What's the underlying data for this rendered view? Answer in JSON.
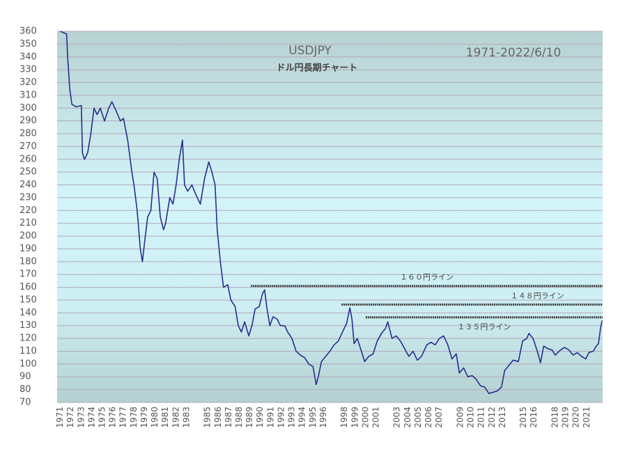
{
  "chart_data": {
    "type": "line",
    "title": "USDJPY",
    "subtitle": "ドル円長期チャート",
    "date_label": "1971-2022/6/10",
    "color": "#2b2b8c",
    "grid": true,
    "xlim": [
      1970.7,
      2022.5
    ],
    "ylim": [
      70,
      360
    ],
    "yticks": [
      70,
      80,
      90,
      100,
      110,
      120,
      130,
      140,
      150,
      160,
      170,
      180,
      190,
      200,
      210,
      220,
      230,
      240,
      250,
      260,
      270,
      280,
      290,
      300,
      310,
      320,
      330,
      340,
      350,
      360
    ],
    "xticks": [
      1971,
      1972,
      1973,
      1974,
      1975,
      1976,
      1977,
      1978,
      1979,
      1980,
      1981,
      1982,
      1983,
      1985,
      1986,
      1987,
      1988,
      1989,
      1990,
      1991,
      1992,
      1993,
      1994,
      1995,
      1996,
      1998,
      1999,
      2000,
      2001,
      2003,
      2004,
      2005,
      2006,
      2007,
      2009,
      2010,
      2011,
      2012,
      2013,
      2015,
      2016,
      2018,
      2019,
      2020,
      2021
    ],
    "x": [
      1971.0,
      1971.6,
      1971.7,
      1971.9,
      1972.1,
      1972.5,
      1973.0,
      1973.1,
      1973.3,
      1973.6,
      1973.9,
      1974.2,
      1974.5,
      1974.8,
      1975.2,
      1975.6,
      1975.9,
      1976.3,
      1976.7,
      1977.0,
      1977.4,
      1977.8,
      1978.0,
      1978.3,
      1978.6,
      1978.8,
      1979.0,
      1979.3,
      1979.6,
      1979.9,
      1980.2,
      1980.5,
      1980.8,
      1981.0,
      1981.4,
      1981.7,
      1982.0,
      1982.3,
      1982.6,
      1982.8,
      1983.1,
      1983.5,
      1983.9,
      1984.3,
      1984.7,
      1985.1,
      1985.4,
      1985.7,
      1985.9,
      1986.2,
      1986.5,
      1986.9,
      1987.2,
      1987.6,
      1987.9,
      1988.2,
      1988.5,
      1988.9,
      1989.2,
      1989.5,
      1989.9,
      1990.2,
      1990.4,
      1990.6,
      1990.9,
      1991.2,
      1991.6,
      1991.9,
      1992.3,
      1992.6,
      1993.0,
      1993.4,
      1993.8,
      1994.2,
      1994.6,
      1995.0,
      1995.3,
      1995.5,
      1995.8,
      1996.2,
      1996.6,
      1997.0,
      1997.4,
      1997.8,
      1998.2,
      1998.5,
      1998.7,
      1998.9,
      1999.2,
      1999.6,
      1999.9,
      2000.3,
      2000.7,
      2001.1,
      2001.5,
      2001.9,
      2002.1,
      2002.5,
      2002.9,
      2003.3,
      2003.7,
      2004.1,
      2004.5,
      2004.9,
      2005.3,
      2005.8,
      2006.2,
      2006.6,
      2007.0,
      2007.4,
      2007.8,
      2008.2,
      2008.6,
      2008.9,
      2009.3,
      2009.7,
      2010.1,
      2010.5,
      2010.9,
      2011.3,
      2011.7,
      2012.1,
      2012.5,
      2012.9,
      2013.2,
      2013.6,
      2014.0,
      2014.5,
      2014.9,
      2015.3,
      2015.5,
      2015.9,
      2016.3,
      2016.6,
      2016.9,
      2017.3,
      2017.7,
      2018.0,
      2018.5,
      2018.9,
      2019.3,
      2019.7,
      2020.1,
      2020.5,
      2020.9,
      2021.2,
      2021.6,
      2021.9,
      2022.1,
      2022.3,
      2022.45
    ],
    "values": [
      360,
      358,
      340,
      315,
      303,
      301,
      302,
      265,
      260,
      265,
      280,
      300,
      295,
      300,
      290,
      300,
      305,
      298,
      290,
      292,
      275,
      250,
      240,
      220,
      190,
      180,
      195,
      215,
      220,
      250,
      245,
      215,
      205,
      210,
      230,
      225,
      240,
      260,
      275,
      240,
      235,
      240,
      232,
      225,
      245,
      258,
      250,
      240,
      205,
      180,
      160,
      162,
      150,
      145,
      130,
      125,
      133,
      122,
      130,
      143,
      145,
      155,
      158,
      145,
      130,
      137,
      135,
      130,
      130,
      125,
      120,
      110,
      107,
      105,
      100,
      98,
      84,
      90,
      102,
      106,
      110,
      115,
      118,
      125,
      132,
      144,
      135,
      116,
      120,
      110,
      102,
      106,
      108,
      118,
      124,
      128,
      133,
      120,
      122,
      118,
      112,
      106,
      110,
      103,
      106,
      115,
      117,
      115,
      120,
      122,
      115,
      104,
      108,
      93,
      97,
      90,
      91,
      88,
      83,
      82,
      77,
      78,
      79,
      82,
      95,
      99,
      103,
      102,
      118,
      120,
      124,
      120,
      110,
      101,
      114,
      112,
      111,
      107,
      111,
      113,
      111,
      107,
      109,
      106,
      104,
      109,
      110,
      114,
      116,
      128,
      134
    ],
    "annotations": [
      {
        "text": "１６０円ライン",
        "y": 161,
        "x_start": 1989.1
      },
      {
        "text": "１４８円ライン",
        "y": 146.5,
        "x_start": 1997.7
      },
      {
        "text": "１３５円ライン",
        "y": 136.5,
        "x_start": 2000.0
      }
    ]
  }
}
